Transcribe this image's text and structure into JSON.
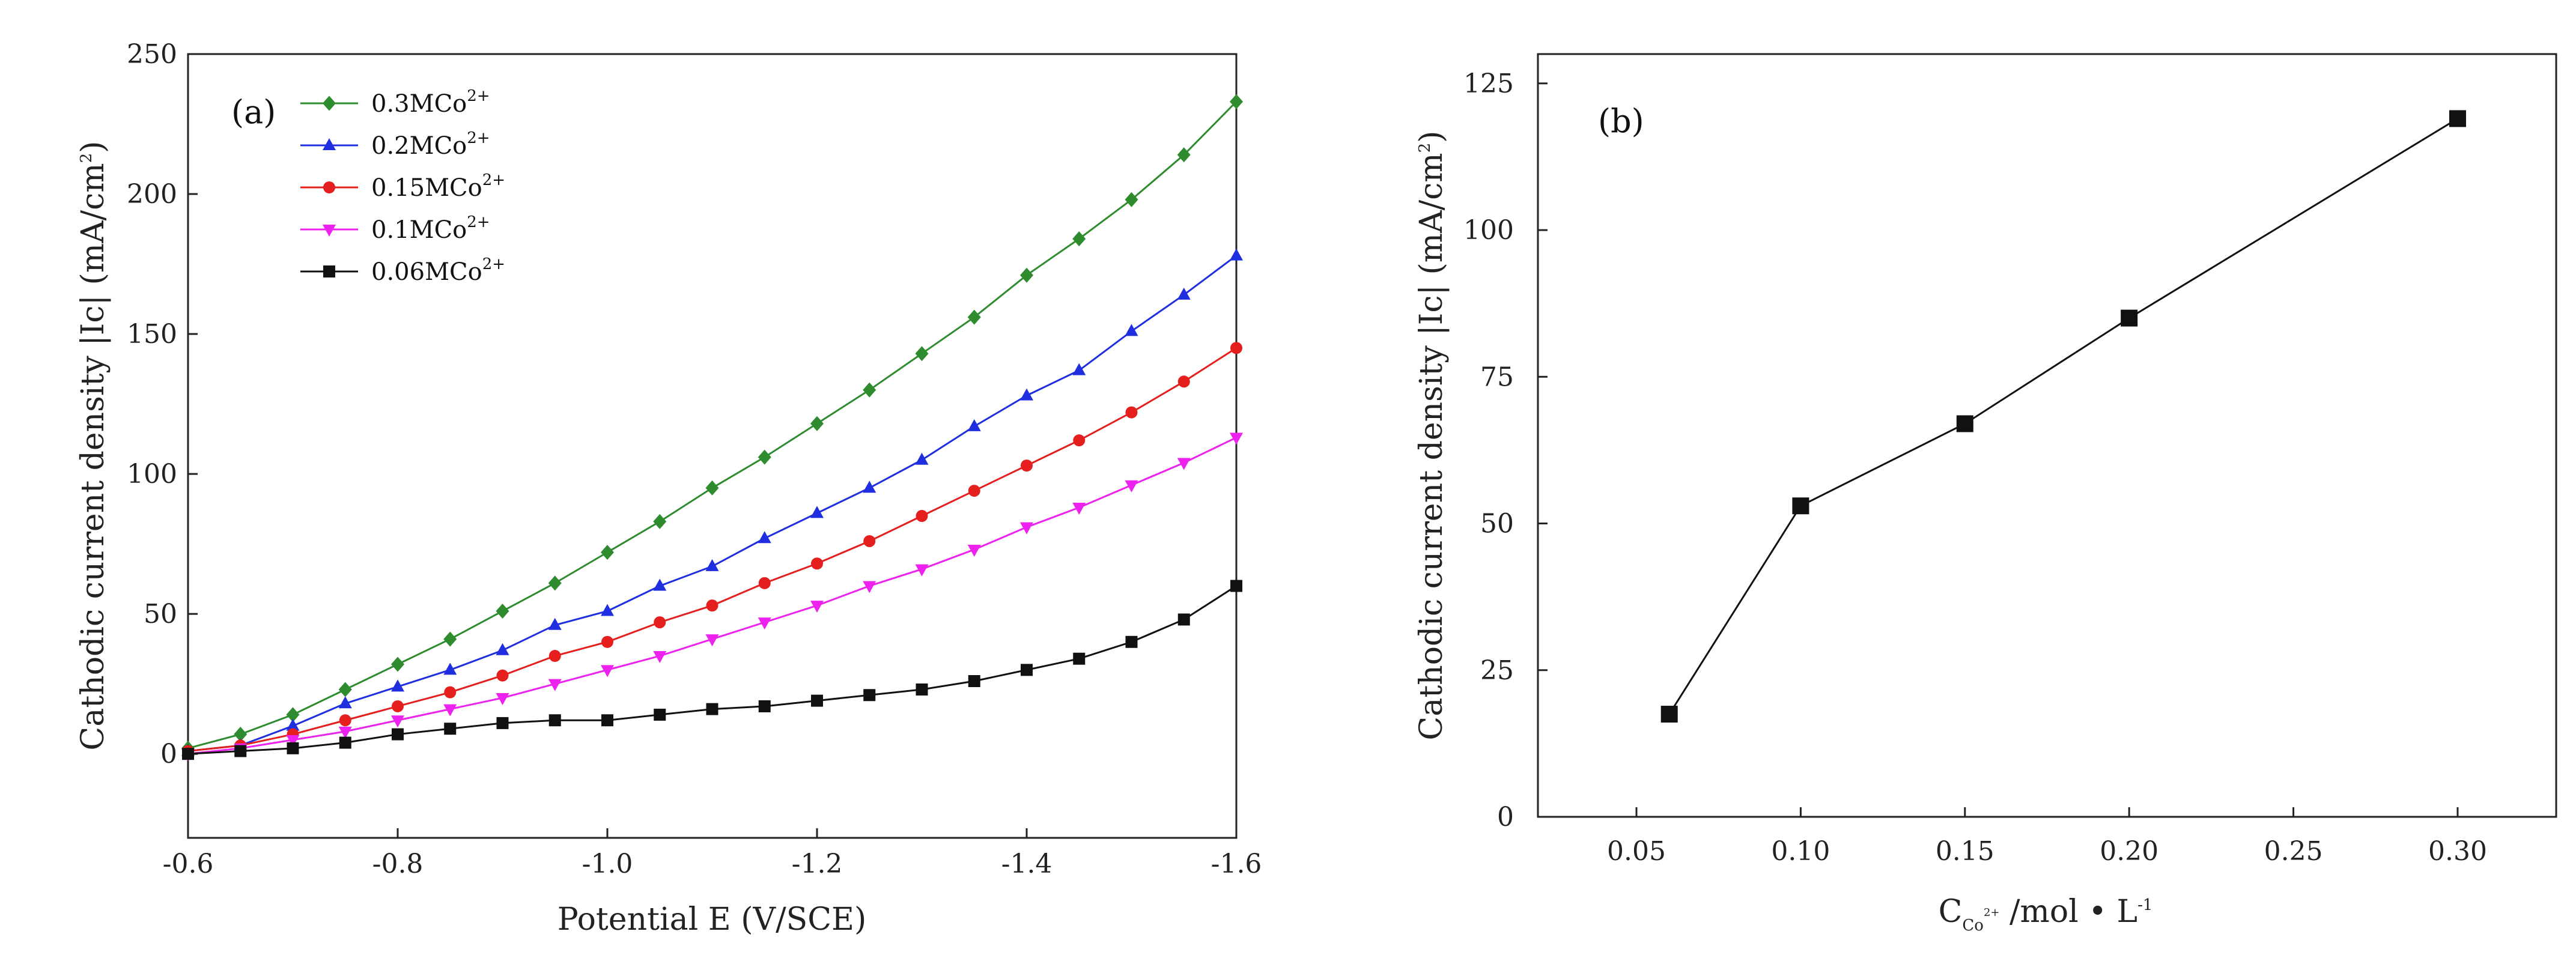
{
  "chart_data": [
    {
      "type": "line",
      "panel_label": "(a)",
      "xlabel": "Potential E (V/SCE)",
      "ylabel_main": "Cathodic current density |Ic| (mA/cm",
      "ylabel_sup": "2",
      "ylabel_end": ")",
      "xlim": [
        -0.6,
        -1.6
      ],
      "ylim": [
        -30,
        250
      ],
      "x_ticks": [
        -0.6,
        -0.8,
        -1.0,
        -1.2,
        -1.4,
        -1.6
      ],
      "x_tick_labels": [
        "-0.6",
        "-0.8",
        "-1.0",
        "-1.2",
        "-1.4",
        "-1.6"
      ],
      "y_ticks": [
        0,
        50,
        100,
        150,
        200,
        250
      ],
      "y_tick_labels": [
        "0",
        "50",
        "100",
        "150",
        "200",
        "250"
      ],
      "x": [
        -0.6,
        -0.65,
        -0.7,
        -0.75,
        -0.8,
        -0.85,
        -0.9,
        -0.95,
        -1.0,
        -1.05,
        -1.1,
        -1.15,
        -1.2,
        -1.25,
        -1.3,
        -1.35,
        -1.4,
        -1.45,
        -1.5,
        -1.55,
        -1.6
      ],
      "series": [
        {
          "name": "0.3MCo",
          "sup": "2+",
          "color": "#2e8b2e",
          "marker": "diamond",
          "values": [
            2,
            7,
            14,
            23,
            32,
            41,
            51,
            61,
            72,
            83,
            95,
            106,
            118,
            130,
            143,
            156,
            171,
            184,
            198,
            214,
            233
          ]
        },
        {
          "name": "0.2MCo",
          "sup": "2+",
          "color": "#1f2fe0",
          "marker": "triangle-up",
          "values": [
            1,
            3,
            10,
            18,
            24,
            30,
            37,
            46,
            51,
            60,
            67,
            77,
            86,
            95,
            105,
            117,
            128,
            137,
            151,
            164,
            178
          ]
        },
        {
          "name": "0.15MCo",
          "sup": "2+",
          "color": "#e51e1e",
          "marker": "circle",
          "values": [
            1,
            3,
            7,
            12,
            17,
            22,
            28,
            35,
            40,
            47,
            53,
            61,
            68,
            76,
            85,
            94,
            103,
            112,
            122,
            133,
            145
          ]
        },
        {
          "name": "0.1MCo",
          "sup": "2+",
          "color": "#ee22ee",
          "marker": "triangle-down",
          "values": [
            0,
            2,
            5,
            8,
            12,
            16,
            20,
            25,
            30,
            35,
            41,
            47,
            53,
            60,
            66,
            73,
            81,
            88,
            96,
            104,
            113
          ]
        },
        {
          "name": "0.06MCo",
          "sup": "2+",
          "color": "#111111",
          "marker": "square",
          "values": [
            0,
            1,
            2,
            4,
            7,
            9,
            11,
            12,
            12,
            14,
            16,
            17,
            19,
            21,
            23,
            26,
            30,
            34,
            40,
            48,
            60
          ]
        }
      ]
    },
    {
      "type": "line",
      "panel_label": "(b)",
      "xlabel_main": "C",
      "xlabel_sub": "Co",
      "xlabel_subsup": "2+",
      "xlabel_rest": " /mol • L",
      "xlabel_sup": "-1",
      "ylabel_main": "Cathodic current density |Ic| (mA/cm",
      "ylabel_sup": "2",
      "ylabel_end": ")",
      "xlim": [
        0.02,
        0.33
      ],
      "ylim": [
        0,
        130
      ],
      "x_ticks": [
        0.05,
        0.1,
        0.15,
        0.2,
        0.25,
        0.3
      ],
      "x_tick_labels": [
        "0.05",
        "0.10",
        "0.15",
        "0.20",
        "0.25",
        "0.30"
      ],
      "y_ticks": [
        0,
        25,
        50,
        75,
        100,
        125
      ],
      "y_tick_labels": [
        "0",
        "25",
        "50",
        "75",
        "100",
        "125"
      ],
      "series": [
        {
          "name": "Ic",
          "color": "#111111",
          "marker": "square",
          "x": [
            0.06,
            0.1,
            0.15,
            0.2,
            0.3
          ],
          "values": [
            17.5,
            53,
            67,
            85,
            119
          ]
        }
      ]
    }
  ]
}
